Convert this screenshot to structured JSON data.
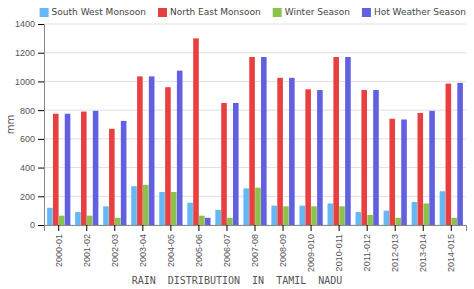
{
  "chart_data": {
    "type": "bar",
    "title": "RAIN  DISTRIBUTION  IN  TAMIL  NADU",
    "ylabel": "mm",
    "categories": [
      "2000-01",
      "2001-02",
      "2002-03",
      "2003-04",
      "2004-05",
      "2005-06",
      "2006-07",
      "2007-08",
      "2008-09",
      "2009-010",
      "2010-011",
      "2011-012",
      "2012-013",
      "2013-014",
      "2014-015"
    ],
    "series": [
      {
        "name": "South West Monsoon",
        "color": "#63B8F5",
        "values": [
          120,
          90,
          130,
          270,
          230,
          155,
          105,
          255,
          135,
          135,
          150,
          90,
          100,
          160,
          235
        ]
      },
      {
        "name": "North East Monsoon",
        "color": "#E84040",
        "values": [
          775,
          790,
          670,
          1035,
          960,
          1300,
          850,
          1170,
          1025,
          945,
          1170,
          940,
          740,
          780,
          985
        ]
      },
      {
        "name": "Winter Season",
        "color": "#8BC34A",
        "values": [
          65,
          65,
          50,
          280,
          230,
          65,
          50,
          260,
          130,
          130,
          130,
          70,
          50,
          150,
          50
        ]
      },
      {
        "name": "Hot Weather Season",
        "color": "#6060E0",
        "values": [
          775,
          795,
          725,
          1035,
          1075,
          50,
          850,
          1170,
          1025,
          940,
          1170,
          940,
          735,
          795,
          990
        ]
      }
    ],
    "ylim": [
      0,
      1400
    ],
    "yticks": [
      0,
      200,
      400,
      600,
      800,
      1000,
      1200,
      1400
    ],
    "grid": true,
    "legend": "upper right"
  }
}
